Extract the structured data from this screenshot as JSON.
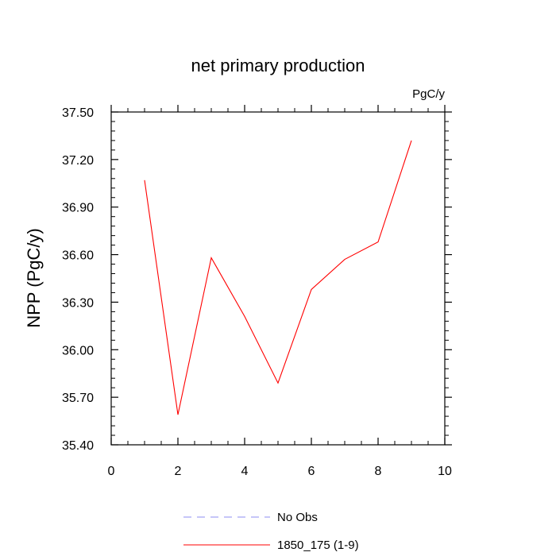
{
  "chart_data": {
    "type": "line",
    "title": "net primary production",
    "units": "PgC/y",
    "xlabel": "",
    "ylabel": "NPP  (PgC/y)",
    "xlim": [
      0,
      10
    ],
    "ylim": [
      35.4,
      37.5
    ],
    "x_ticks": [
      "0",
      "2",
      "4",
      "6",
      "8",
      "10"
    ],
    "y_ticks": [
      "35.40",
      "35.70",
      "36.00",
      "36.30",
      "36.60",
      "36.90",
      "37.20",
      "37.50"
    ],
    "grid": false,
    "legend_position": "bottom-center",
    "series": [
      {
        "name": "No Obs",
        "color": "#8c8cf0",
        "dash": true,
        "x": [],
        "y": []
      },
      {
        "name": "1850_175 (1-9)",
        "color": "#ff0000",
        "dash": false,
        "x": [
          1,
          2,
          3,
          4,
          5,
          6,
          7,
          8,
          9
        ],
        "y": [
          37.07,
          35.59,
          36.58,
          36.21,
          35.79,
          36.38,
          36.57,
          36.68,
          37.32
        ]
      }
    ]
  }
}
